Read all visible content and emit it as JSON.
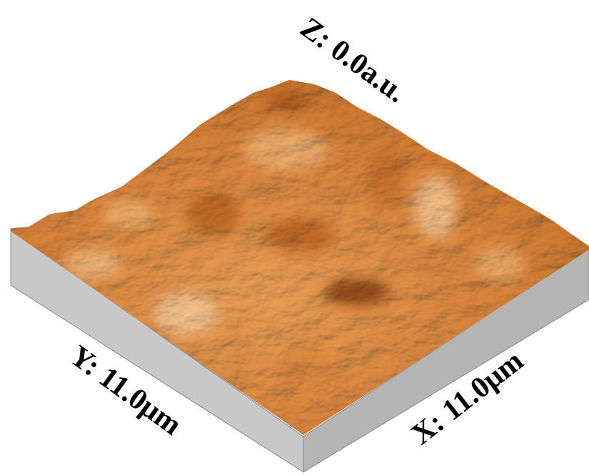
{
  "z_label": "Z: 0.0a.u.",
  "y_label": "Y: 11.0μm",
  "x_label": "X: 11.0μm"
}
